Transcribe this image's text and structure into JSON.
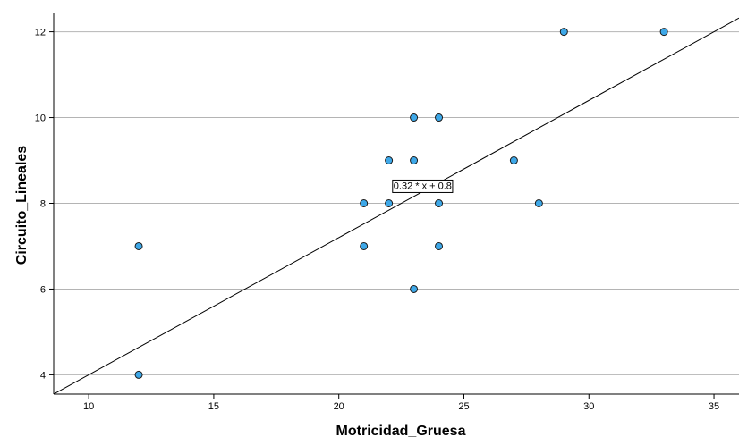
{
  "chart_data": {
    "type": "scatter",
    "title": "",
    "xlabel": "Motricidad_Gruesa",
    "ylabel": "Circuito_Lineales",
    "xlim": [
      8.6,
      36.0
    ],
    "ylim": [
      3.55,
      12.45
    ],
    "xticks": [
      10,
      15,
      20,
      25,
      30,
      35
    ],
    "yticks": [
      4,
      6,
      8,
      10,
      12
    ],
    "grid": "horizontal",
    "points": [
      {
        "x": 12,
        "y": 4
      },
      {
        "x": 12,
        "y": 7
      },
      {
        "x": 21,
        "y": 7
      },
      {
        "x": 21,
        "y": 8
      },
      {
        "x": 22,
        "y": 8
      },
      {
        "x": 22,
        "y": 9
      },
      {
        "x": 23,
        "y": 6
      },
      {
        "x": 23,
        "y": 9
      },
      {
        "x": 23,
        "y": 10
      },
      {
        "x": 24,
        "y": 7
      },
      {
        "x": 24,
        "y": 8
      },
      {
        "x": 24,
        "y": 10
      },
      {
        "x": 27,
        "y": 9
      },
      {
        "x": 28,
        "y": 8
      },
      {
        "x": 29,
        "y": 12
      },
      {
        "x": 33,
        "y": 12
      }
    ],
    "fit_line": {
      "slope": 0.32,
      "intercept": 0.8,
      "label": "0.32 * x + 0.8"
    },
    "colors": {
      "point_fill": "#3ea8e8",
      "point_stroke": "#1a1a1a",
      "line": "#000000",
      "grid": "#b4b4b4"
    }
  }
}
